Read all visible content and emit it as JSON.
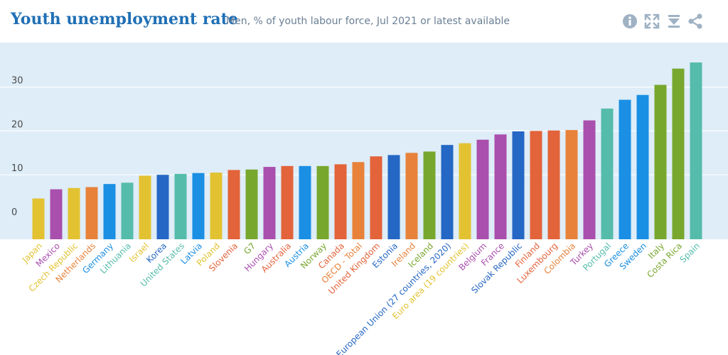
{
  "header": {
    "title": "Youth unemployment rate",
    "subtitle": "Men, % of youth labour force, Jul 2021 or latest available"
  },
  "toolbar": {
    "info_icon": "info-icon",
    "expand_icon": "expand-icon",
    "download_icon": "download-icon",
    "share_icon": "share-icon",
    "icon_color": "#9fb2c4"
  },
  "colors": {
    "plot_background": "#deedf8",
    "grid": "#ffffff",
    "tick_text": "#4a4a4a"
  },
  "chart_data": {
    "type": "bar",
    "title": "Youth unemployment rate",
    "subtitle": "Men, % of youth labour force, Jul 2021 or latest available",
    "xlabel": "",
    "ylabel": "",
    "ylim": [
      -2,
      40
    ],
    "yticks": [
      0,
      10,
      20,
      30
    ],
    "grid": true,
    "categories": [
      "Japan",
      "Mexico",
      "Czech Republic",
      "Netherlands",
      "Germany",
      "Lithuania",
      "Israel",
      "Korea",
      "United States",
      "Latvia",
      "Poland",
      "Slovenia",
      "G7",
      "Hungary",
      "Australia",
      "Austria",
      "Norway",
      "Canada",
      "OECD - Total",
      "United Kingdom",
      "Estonia",
      "Ireland",
      "Iceland",
      "European Union (27 countries, 2020)",
      "Euro area (19 countries)",
      "Belgium",
      "France",
      "Slovak Republic",
      "Finland",
      "Luxembourg",
      "Colombia",
      "Turkey",
      "Portugal",
      "Greece",
      "Sweden",
      "Italy",
      "Costa Rica",
      "Spain"
    ],
    "values": [
      4.6,
      6.7,
      7.0,
      7.2,
      7.9,
      8.2,
      9.8,
      10.0,
      10.2,
      10.4,
      10.5,
      11.1,
      11.2,
      11.8,
      12.0,
      12.0,
      12.0,
      12.4,
      12.9,
      14.2,
      14.5,
      15.0,
      15.3,
      16.8,
      17.2,
      18.0,
      19.2,
      19.9,
      20.0,
      20.1,
      20.2,
      22.4,
      25.1,
      27.1,
      28.2,
      30.5,
      34.2,
      35.6
    ],
    "colors": [
      "#e3c232",
      "#a94fad",
      "#e3c232",
      "#e8823a",
      "#1a8fe3",
      "#55bcab",
      "#e3c232",
      "#2567c4",
      "#55bcab",
      "#1a8fe3",
      "#e3c232",
      "#e3633a",
      "#78a72e",
      "#a94fad",
      "#e3633a",
      "#1a8fe3",
      "#78a72e",
      "#e3633a",
      "#e8823a",
      "#e3633a",
      "#2567c4",
      "#e8823a",
      "#78a72e",
      "#2567c4",
      "#e3c232",
      "#a94fad",
      "#a94fad",
      "#2567c4",
      "#e3633a",
      "#e3633a",
      "#e8823a",
      "#a94fad",
      "#55bcab",
      "#1a8fe3",
      "#1a8fe3",
      "#78a72e",
      "#78a72e",
      "#55bcab"
    ],
    "label_colors": [
      "#e3c232",
      "#a94fad",
      "#e3c232",
      "#e8823a",
      "#1a8fe3",
      "#55bcab",
      "#e3c232",
      "#2567c4",
      "#55bcab",
      "#1a8fe3",
      "#e3c232",
      "#e3633a",
      "#78a72e",
      "#a94fad",
      "#e3633a",
      "#1a8fe3",
      "#78a72e",
      "#e3633a",
      "#e8823a",
      "#e3633a",
      "#2567c4",
      "#e8823a",
      "#78a72e",
      "#2567c4",
      "#e3c232",
      "#a94fad",
      "#a94fad",
      "#2567c4",
      "#e3633a",
      "#e3633a",
      "#e8823a",
      "#a94fad",
      "#55bcab",
      "#1a8fe3",
      "#1a8fe3",
      "#78a72e",
      "#78a72e",
      "#55bcab"
    ]
  }
}
